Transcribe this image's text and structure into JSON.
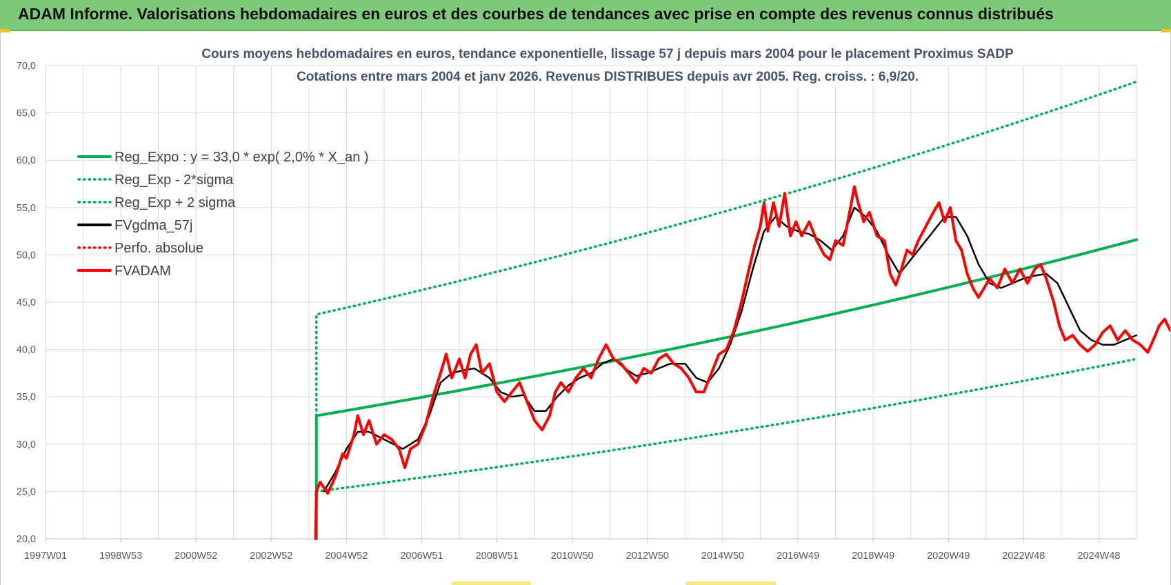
{
  "banner": {
    "title": "ADAM Informe. Valorisations hebdomadaires en euros et des courbes de tendances avec prise en compte des revenus connus distribués"
  },
  "chart_data": {
    "type": "line",
    "title_lines": [
      "Cours moyens  hebdomadaires en euros, tendance exponentielle, lissage 57 j depuis mars 2004 pour le placement Proximus SADP",
      "Cotations entre mars 2004 et janv 2026. Revenus DISTRIBUES depuis avr 2005. Reg. croiss. : 6,9/20."
    ],
    "xlabel": "",
    "ylabel": "",
    "y_range": [
      20,
      70
    ],
    "y_ticks": [
      "20,0",
      "25,0",
      "30,0",
      "35,0",
      "40,0",
      "45,0",
      "50,0",
      "55,0",
      "60,0",
      "65,0",
      "70,0"
    ],
    "x_range": [
      1997.0,
      2026.0
    ],
    "x_ticks": [
      {
        "label": "1997W01",
        "year": 1997.0
      },
      {
        "label": "1998W53",
        "year": 1999.0
      },
      {
        "label": "2000W52",
        "year": 2001.0
      },
      {
        "label": "2002W52",
        "year": 2003.0
      },
      {
        "label": "2004W52",
        "year": 2005.0
      },
      {
        "label": "2006W51",
        "year": 2007.0
      },
      {
        "label": "2008W51",
        "year": 2009.0
      },
      {
        "label": "2010W50",
        "year": 2011.0
      },
      {
        "label": "2012W50",
        "year": 2013.0
      },
      {
        "label": "2014W50",
        "year": 2015.0
      },
      {
        "label": "2016W49",
        "year": 2017.0
      },
      {
        "label": "2018W49",
        "year": 2019.0
      },
      {
        "label": "2020W49",
        "year": 2021.0
      },
      {
        "label": "2022W48",
        "year": 2023.0
      },
      {
        "label": "2024W48",
        "year": 2025.0
      }
    ],
    "grid": true,
    "legend_position": "top-left",
    "series": [
      {
        "name": "Reg_Expo : y = 33,0 * exp( 2,0% *  X_an )",
        "color": "#00b050",
        "style": "solid",
        "points": [
          [
            2004.2,
            20.0
          ],
          [
            2004.2,
            33.0
          ],
          [
            2026.0,
            51.6
          ]
        ]
      },
      {
        "name": "Reg_Exp - 2*sigma",
        "color": "#00b050",
        "style": "dotted",
        "points": [
          [
            2004.2,
            25.0
          ],
          [
            2026.0,
            39.0
          ]
        ]
      },
      {
        "name": "Reg_Exp + 2 sigma",
        "color": "#00b050",
        "style": "dotted",
        "points": [
          [
            2004.2,
            33.0
          ],
          [
            2004.2,
            43.7
          ],
          [
            2026.0,
            68.3
          ]
        ]
      },
      {
        "name": "FVgdma_57j",
        "color": "#000000",
        "style": "solid",
        "points": [
          [
            2004.4,
            25.0
          ],
          [
            2004.7,
            27.0
          ],
          [
            2005.0,
            29.5
          ],
          [
            2005.3,
            31.3
          ],
          [
            2005.6,
            31.3
          ],
          [
            2006.0,
            30.5
          ],
          [
            2006.5,
            29.5
          ],
          [
            2006.9,
            30.5
          ],
          [
            2007.2,
            33.0
          ],
          [
            2007.5,
            36.5
          ],
          [
            2007.8,
            37.5
          ],
          [
            2008.1,
            37.8
          ],
          [
            2008.4,
            38.0
          ],
          [
            2008.8,
            37.0
          ],
          [
            2009.1,
            35.5
          ],
          [
            2009.4,
            35.0
          ],
          [
            2009.7,
            35.2
          ],
          [
            2010.0,
            33.5
          ],
          [
            2010.3,
            33.5
          ],
          [
            2010.6,
            35.0
          ],
          [
            2010.9,
            36.2
          ],
          [
            2011.2,
            37.0
          ],
          [
            2011.5,
            37.5
          ],
          [
            2011.8,
            38.5
          ],
          [
            2012.1,
            39.0
          ],
          [
            2012.4,
            38.0
          ],
          [
            2012.7,
            37.2
          ],
          [
            2013.0,
            37.5
          ],
          [
            2013.3,
            38.0
          ],
          [
            2013.6,
            38.5
          ],
          [
            2014.0,
            38.5
          ],
          [
            2014.3,
            37.0
          ],
          [
            2014.6,
            36.5
          ],
          [
            2014.9,
            38.0
          ],
          [
            2015.2,
            40.5
          ],
          [
            2015.5,
            44.0
          ],
          [
            2015.8,
            48.5
          ],
          [
            2016.1,
            52.5
          ],
          [
            2016.4,
            54.0
          ],
          [
            2016.7,
            53.0
          ],
          [
            2017.0,
            52.5
          ],
          [
            2017.3,
            52.2
          ],
          [
            2017.6,
            51.5
          ],
          [
            2017.9,
            50.5
          ],
          [
            2018.2,
            52.0
          ],
          [
            2018.5,
            55.0
          ],
          [
            2018.8,
            54.0
          ],
          [
            2019.1,
            52.5
          ],
          [
            2019.4,
            50.0
          ],
          [
            2019.7,
            48.0
          ],
          [
            2020.0,
            49.5
          ],
          [
            2020.3,
            51.0
          ],
          [
            2020.6,
            52.5
          ],
          [
            2020.9,
            54.0
          ],
          [
            2021.2,
            54.0
          ],
          [
            2021.5,
            52.0
          ],
          [
            2021.8,
            49.0
          ],
          [
            2022.1,
            47.0
          ],
          [
            2022.4,
            46.5
          ],
          [
            2022.7,
            47.0
          ],
          [
            2023.0,
            47.5
          ],
          [
            2023.3,
            47.8
          ],
          [
            2023.6,
            48.0
          ],
          [
            2023.9,
            47.0
          ],
          [
            2024.2,
            44.5
          ],
          [
            2024.5,
            42.0
          ],
          [
            2024.8,
            41.0
          ],
          [
            2025.1,
            40.5
          ],
          [
            2025.4,
            40.5
          ],
          [
            2025.7,
            41.0
          ],
          [
            2026.0,
            41.5
          ]
        ]
      },
      {
        "name": "Perfo. absolue",
        "color": "#ff0000",
        "style": "dotted",
        "points": []
      },
      {
        "name": "FVADAM",
        "color": "#ff0000",
        "style": "solid",
        "points": [
          [
            2004.18,
            20.0
          ],
          [
            2004.2,
            25.0
          ],
          [
            2004.3,
            26.0
          ],
          [
            2004.5,
            24.8
          ],
          [
            2004.7,
            26.5
          ],
          [
            2004.9,
            29.0
          ],
          [
            2005.0,
            28.5
          ],
          [
            2005.2,
            31.0
          ],
          [
            2005.3,
            33.0
          ],
          [
            2005.45,
            31.0
          ],
          [
            2005.6,
            32.5
          ],
          [
            2005.8,
            30.0
          ],
          [
            2006.0,
            31.0
          ],
          [
            2006.2,
            30.5
          ],
          [
            2006.4,
            29.5
          ],
          [
            2006.55,
            27.5
          ],
          [
            2006.7,
            29.5
          ],
          [
            2006.9,
            30.0
          ],
          [
            2007.1,
            32.0
          ],
          [
            2007.3,
            35.0
          ],
          [
            2007.5,
            37.5
          ],
          [
            2007.65,
            39.5
          ],
          [
            2007.8,
            37.0
          ],
          [
            2008.0,
            39.0
          ],
          [
            2008.15,
            37.0
          ],
          [
            2008.3,
            39.5
          ],
          [
            2008.45,
            40.5
          ],
          [
            2008.6,
            37.5
          ],
          [
            2008.8,
            38.5
          ],
          [
            2009.0,
            35.5
          ],
          [
            2009.2,
            34.5
          ],
          [
            2009.4,
            35.5
          ],
          [
            2009.6,
            36.5
          ],
          [
            2009.8,
            34.5
          ],
          [
            2010.0,
            32.5
          ],
          [
            2010.2,
            31.5
          ],
          [
            2010.4,
            33.0
          ],
          [
            2010.55,
            35.5
          ],
          [
            2010.7,
            36.5
          ],
          [
            2010.9,
            35.5
          ],
          [
            2011.1,
            37.0
          ],
          [
            2011.3,
            38.0
          ],
          [
            2011.5,
            37.0
          ],
          [
            2011.7,
            39.0
          ],
          [
            2011.9,
            40.5
          ],
          [
            2012.1,
            39.0
          ],
          [
            2012.3,
            38.5
          ],
          [
            2012.5,
            37.5
          ],
          [
            2012.7,
            36.5
          ],
          [
            2012.9,
            38.0
          ],
          [
            2013.1,
            37.5
          ],
          [
            2013.3,
            39.0
          ],
          [
            2013.5,
            39.5
          ],
          [
            2013.7,
            38.5
          ],
          [
            2013.9,
            38.0
          ],
          [
            2014.1,
            37.0
          ],
          [
            2014.3,
            35.5
          ],
          [
            2014.5,
            35.5
          ],
          [
            2014.7,
            37.5
          ],
          [
            2014.9,
            39.5
          ],
          [
            2015.1,
            40.0
          ],
          [
            2015.3,
            42.0
          ],
          [
            2015.5,
            45.0
          ],
          [
            2015.7,
            48.5
          ],
          [
            2015.85,
            51.0
          ],
          [
            2016.0,
            53.0
          ],
          [
            2016.1,
            55.5
          ],
          [
            2016.2,
            52.5
          ],
          [
            2016.35,
            55.5
          ],
          [
            2016.5,
            53.0
          ],
          [
            2016.65,
            56.5
          ],
          [
            2016.8,
            52.0
          ],
          [
            2016.95,
            53.5
          ],
          [
            2017.1,
            52.0
          ],
          [
            2017.3,
            53.5
          ],
          [
            2017.5,
            51.5
          ],
          [
            2017.7,
            50.0
          ],
          [
            2017.85,
            49.5
          ],
          [
            2018.0,
            51.5
          ],
          [
            2018.2,
            51.0
          ],
          [
            2018.35,
            54.0
          ],
          [
            2018.5,
            57.2
          ],
          [
            2018.6,
            55.5
          ],
          [
            2018.75,
            53.5
          ],
          [
            2018.9,
            54.5
          ],
          [
            2019.1,
            52.0
          ],
          [
            2019.3,
            51.5
          ],
          [
            2019.45,
            48.0
          ],
          [
            2019.6,
            46.8
          ],
          [
            2019.75,
            48.5
          ],
          [
            2019.9,
            50.5
          ],
          [
            2020.05,
            50.0
          ],
          [
            2020.2,
            51.5
          ],
          [
            2020.4,
            53.0
          ],
          [
            2020.6,
            54.5
          ],
          [
            2020.75,
            55.5
          ],
          [
            2020.9,
            53.5
          ],
          [
            2021.05,
            55.0
          ],
          [
            2021.2,
            51.5
          ],
          [
            2021.35,
            50.5
          ],
          [
            2021.5,
            48.0
          ],
          [
            2021.65,
            46.5
          ],
          [
            2021.8,
            45.5
          ],
          [
            2021.95,
            46.5
          ],
          [
            2022.1,
            47.5
          ],
          [
            2022.3,
            46.5
          ],
          [
            2022.5,
            48.5
          ],
          [
            2022.7,
            47.0
          ],
          [
            2022.9,
            48.5
          ],
          [
            2023.1,
            47.0
          ],
          [
            2023.3,
            48.5
          ],
          [
            2023.45,
            49.0
          ],
          [
            2023.6,
            47.5
          ],
          [
            2023.8,
            45.0
          ],
          [
            2023.95,
            42.5
          ],
          [
            2024.1,
            41.0
          ],
          [
            2024.3,
            41.5
          ],
          [
            2024.5,
            40.5
          ],
          [
            2024.7,
            39.8
          ],
          [
            2024.9,
            40.5
          ],
          [
            2025.1,
            41.8
          ],
          [
            2025.3,
            42.5
          ],
          [
            2025.5,
            41.0
          ],
          [
            2025.7,
            42.0
          ],
          [
            2025.9,
            41.0
          ],
          [
            2026.1,
            40.5
          ],
          [
            2026.3,
            39.7
          ],
          [
            2026.5,
            41.5
          ],
          [
            2026.6,
            42.5
          ],
          [
            2026.75,
            43.2
          ],
          [
            2026.9,
            42.0
          ],
          [
            2027.0,
            42.0
          ]
        ]
      }
    ]
  }
}
